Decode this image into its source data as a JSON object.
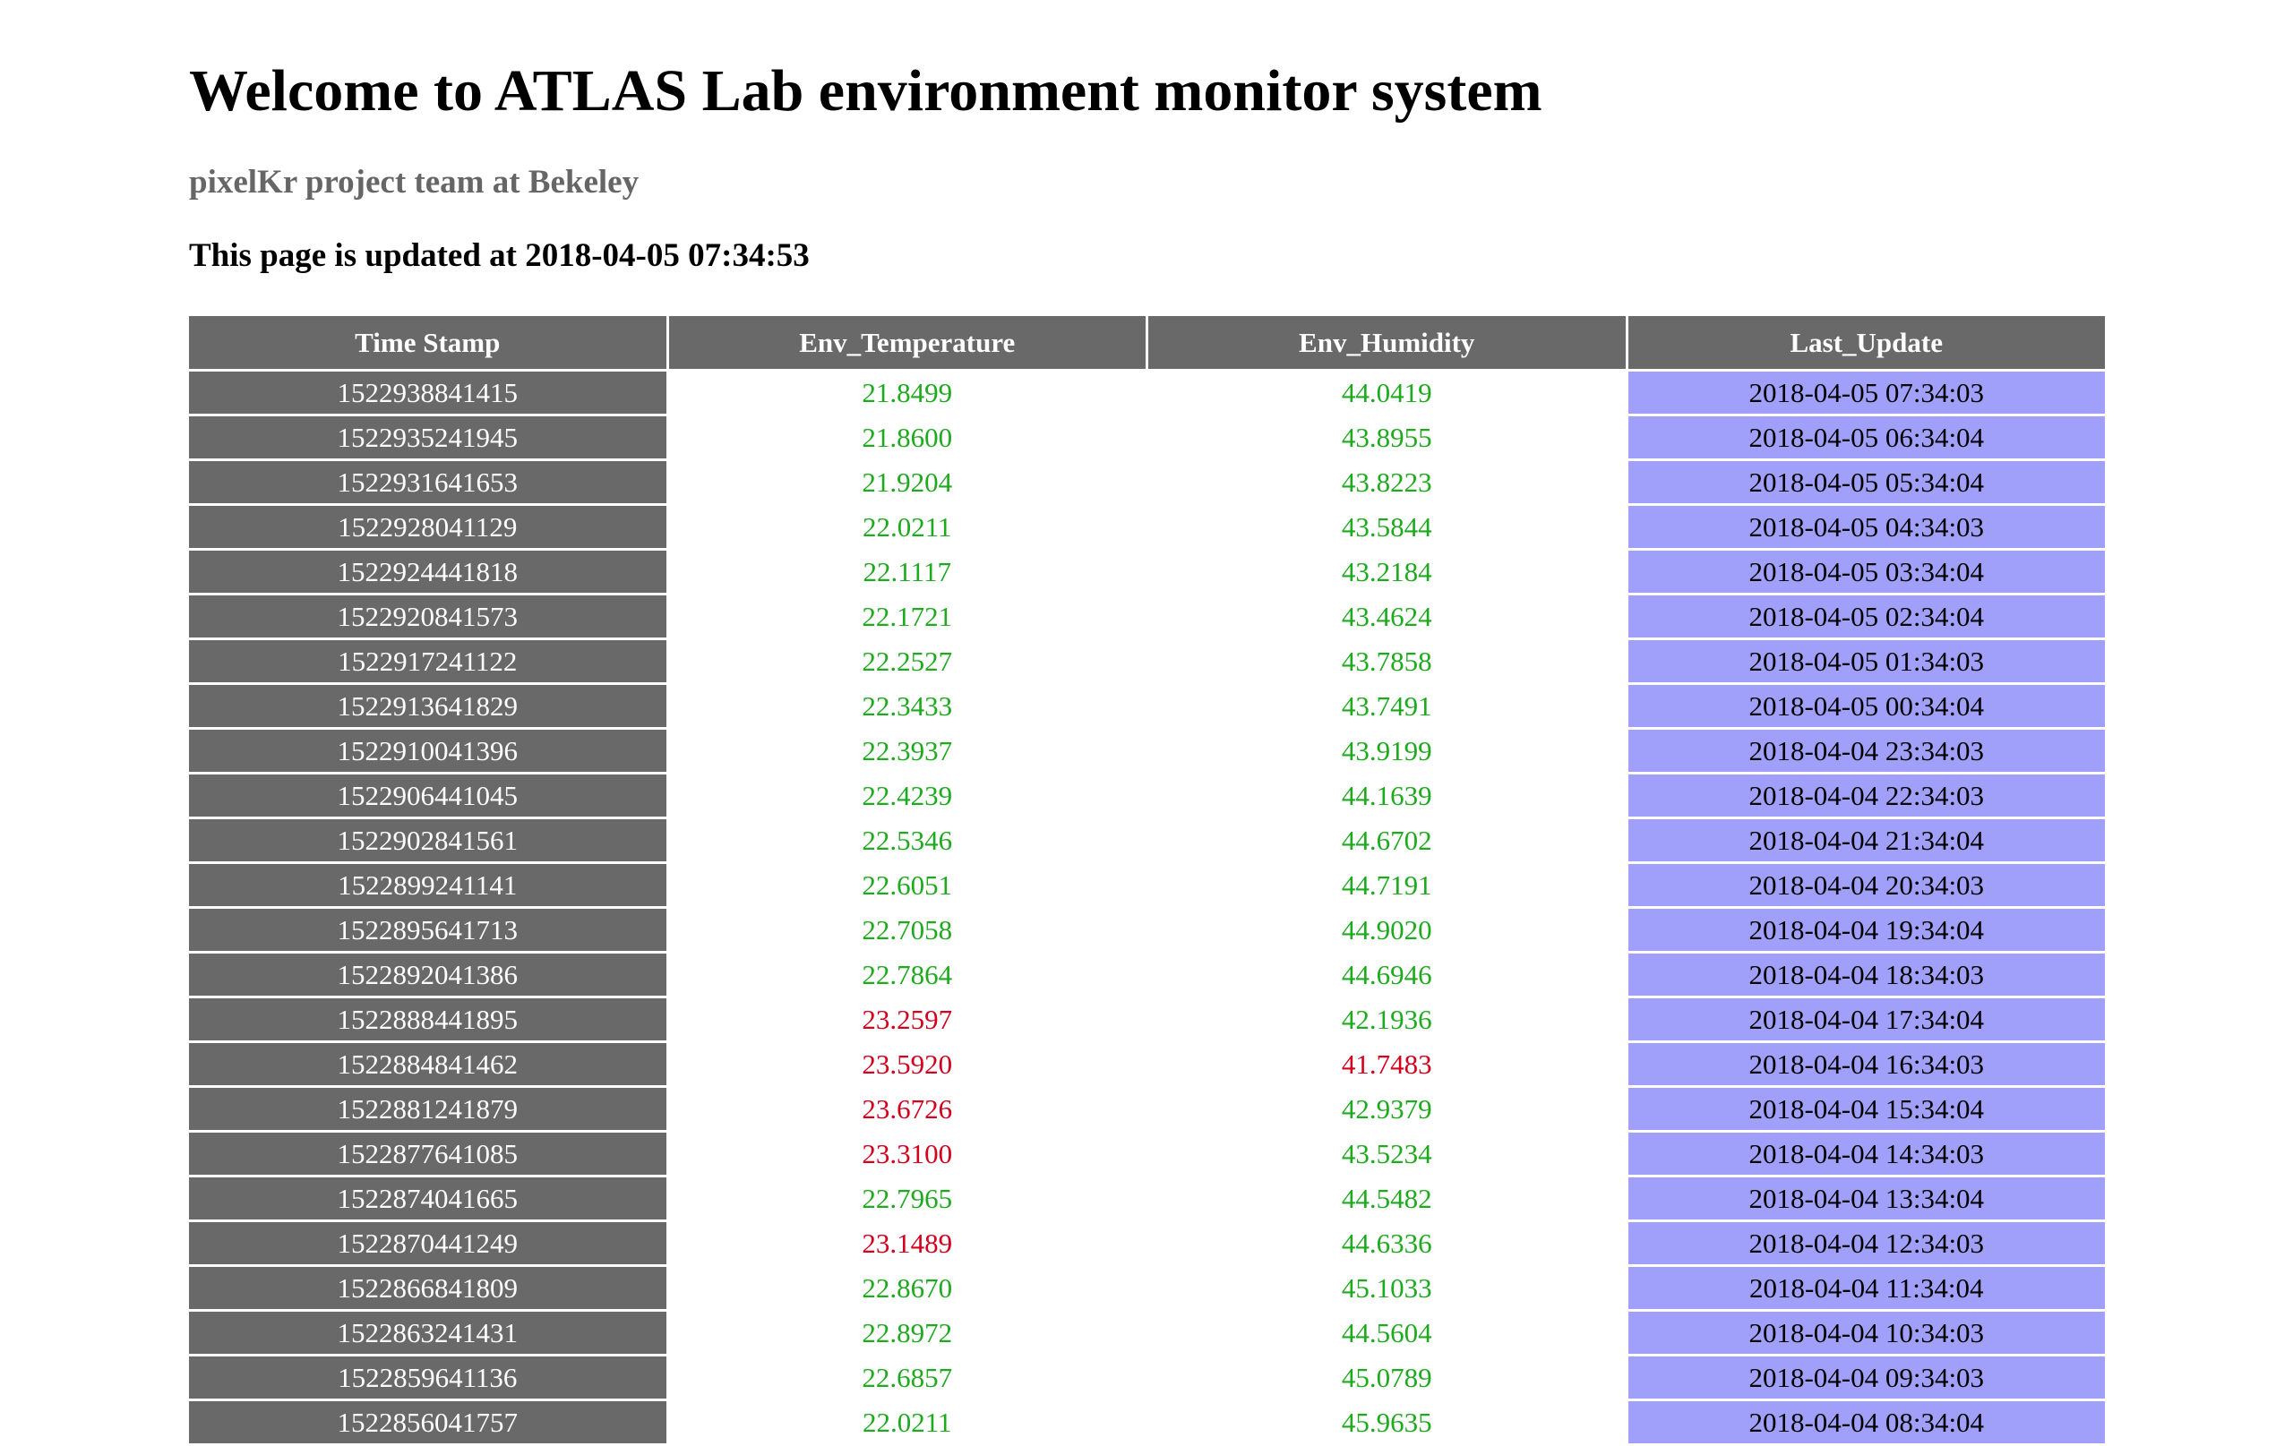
{
  "page": {
    "title": "Welcome to ATLAS Lab environment monitor system",
    "subtitle": "pixelKr project team at Bekeley",
    "updated": "This page is updated at 2018-04-05 07:34:53"
  },
  "colors": {
    "header_bg": "#696969",
    "ok_text": "#1eaa1e",
    "warn_text": "#d3001e",
    "last_update_bg": "#a0a0fa"
  },
  "table": {
    "headers": [
      "Time Stamp",
      "Env_Temperature",
      "Env_Humidity",
      "Last_Update"
    ],
    "rows": [
      {
        "ts": "1522938841415",
        "temp": "21.8499",
        "temp_status": "ok",
        "hum": "44.0419",
        "hum_status": "ok",
        "last": "2018-04-05 07:34:03"
      },
      {
        "ts": "1522935241945",
        "temp": "21.8600",
        "temp_status": "ok",
        "hum": "43.8955",
        "hum_status": "ok",
        "last": "2018-04-05 06:34:04"
      },
      {
        "ts": "1522931641653",
        "temp": "21.9204",
        "temp_status": "ok",
        "hum": "43.8223",
        "hum_status": "ok",
        "last": "2018-04-05 05:34:04"
      },
      {
        "ts": "1522928041129",
        "temp": "22.0211",
        "temp_status": "ok",
        "hum": "43.5844",
        "hum_status": "ok",
        "last": "2018-04-05 04:34:03"
      },
      {
        "ts": "1522924441818",
        "temp": "22.1117",
        "temp_status": "ok",
        "hum": "43.2184",
        "hum_status": "ok",
        "last": "2018-04-05 03:34:04"
      },
      {
        "ts": "1522920841573",
        "temp": "22.1721",
        "temp_status": "ok",
        "hum": "43.4624",
        "hum_status": "ok",
        "last": "2018-04-05 02:34:04"
      },
      {
        "ts": "1522917241122",
        "temp": "22.2527",
        "temp_status": "ok",
        "hum": "43.7858",
        "hum_status": "ok",
        "last": "2018-04-05 01:34:03"
      },
      {
        "ts": "1522913641829",
        "temp": "22.3433",
        "temp_status": "ok",
        "hum": "43.7491",
        "hum_status": "ok",
        "last": "2018-04-05 00:34:04"
      },
      {
        "ts": "1522910041396",
        "temp": "22.3937",
        "temp_status": "ok",
        "hum": "43.9199",
        "hum_status": "ok",
        "last": "2018-04-04 23:34:03"
      },
      {
        "ts": "1522906441045",
        "temp": "22.4239",
        "temp_status": "ok",
        "hum": "44.1639",
        "hum_status": "ok",
        "last": "2018-04-04 22:34:03"
      },
      {
        "ts": "1522902841561",
        "temp": "22.5346",
        "temp_status": "ok",
        "hum": "44.6702",
        "hum_status": "ok",
        "last": "2018-04-04 21:34:04"
      },
      {
        "ts": "1522899241141",
        "temp": "22.6051",
        "temp_status": "ok",
        "hum": "44.7191",
        "hum_status": "ok",
        "last": "2018-04-04 20:34:03"
      },
      {
        "ts": "1522895641713",
        "temp": "22.7058",
        "temp_status": "ok",
        "hum": "44.9020",
        "hum_status": "ok",
        "last": "2018-04-04 19:34:04"
      },
      {
        "ts": "1522892041386",
        "temp": "22.7864",
        "temp_status": "ok",
        "hum": "44.6946",
        "hum_status": "ok",
        "last": "2018-04-04 18:34:03"
      },
      {
        "ts": "1522888441895",
        "temp": "23.2597",
        "temp_status": "warn",
        "hum": "42.1936",
        "hum_status": "ok",
        "last": "2018-04-04 17:34:04"
      },
      {
        "ts": "1522884841462",
        "temp": "23.5920",
        "temp_status": "warn",
        "hum": "41.7483",
        "hum_status": "warn",
        "last": "2018-04-04 16:34:03"
      },
      {
        "ts": "1522881241879",
        "temp": "23.6726",
        "temp_status": "warn",
        "hum": "42.9379",
        "hum_status": "ok",
        "last": "2018-04-04 15:34:04"
      },
      {
        "ts": "1522877641085",
        "temp": "23.3100",
        "temp_status": "warn",
        "hum": "43.5234",
        "hum_status": "ok",
        "last": "2018-04-04 14:34:03"
      },
      {
        "ts": "1522874041665",
        "temp": "22.7965",
        "temp_status": "ok",
        "hum": "44.5482",
        "hum_status": "ok",
        "last": "2018-04-04 13:34:04"
      },
      {
        "ts": "1522870441249",
        "temp": "23.1489",
        "temp_status": "warn",
        "hum": "44.6336",
        "hum_status": "ok",
        "last": "2018-04-04 12:34:03"
      },
      {
        "ts": "1522866841809",
        "temp": "22.8670",
        "temp_status": "ok",
        "hum": "45.1033",
        "hum_status": "ok",
        "last": "2018-04-04 11:34:04"
      },
      {
        "ts": "1522863241431",
        "temp": "22.8972",
        "temp_status": "ok",
        "hum": "44.5604",
        "hum_status": "ok",
        "last": "2018-04-04 10:34:03"
      },
      {
        "ts": "1522859641136",
        "temp": "22.6857",
        "temp_status": "ok",
        "hum": "45.0789",
        "hum_status": "ok",
        "last": "2018-04-04 09:34:03"
      },
      {
        "ts": "1522856041757",
        "temp": "22.0211",
        "temp_status": "ok",
        "hum": "45.9635",
        "hum_status": "ok",
        "last": "2018-04-04 08:34:04"
      }
    ]
  }
}
